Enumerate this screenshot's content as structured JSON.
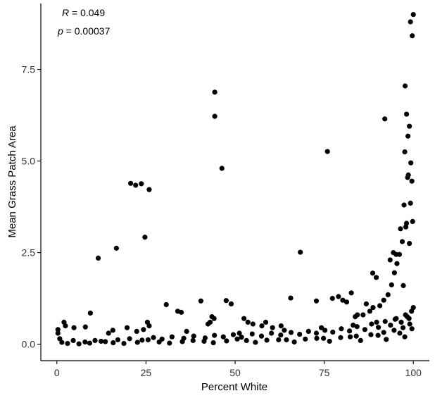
{
  "chart_data": {
    "type": "scatter",
    "xlabel": "Percent White",
    "ylabel": "Mean Grass Patch Area",
    "xlim": [
      -4.5,
      104.5
    ],
    "ylim": [
      -0.45,
      9.3
    ],
    "x_ticks": [
      0,
      25,
      50,
      75,
      100
    ],
    "x_tick_labels": [
      "0",
      "25",
      "50",
      "75",
      "100"
    ],
    "y_ticks": [
      0.0,
      2.5,
      5.0,
      7.5
    ],
    "y_tick_labels": [
      "0.0",
      "2.5",
      "5.0",
      "7.5"
    ],
    "grid": false,
    "legend": "none",
    "point_color": "#000000",
    "annotations": {
      "r_symbol": "R",
      "r_value": " = 0.049",
      "p_symbol": "p",
      "p_value": " = 0.00037"
    },
    "series": [
      {
        "x": [
          0.3,
          0.3,
          2.4,
          2.0,
          4.8,
          8.0,
          9.4,
          11.6,
          16.7,
          20.7,
          22.1,
          23.7,
          24.7,
          25.9,
          14.5,
          15.7,
          19.7,
          22.4,
          25.4,
          25.9,
          24.3,
          30.7,
          33.9,
          34.9,
          40.4,
          44.3,
          44.3,
          46.3,
          47.5,
          48.9,
          43.5,
          43.0,
          42.4,
          44.1,
          52.5,
          53.6,
          55.0,
          57.5,
          58.6,
          60.5,
          62.9,
          65.6,
          68.3,
          72.8,
          75.9,
          77.3,
          79.0,
          80.2,
          81.3,
          82.6,
          84.3,
          86.8,
          88.6,
          89.6,
          92.0,
          93.5,
          94.4,
          95.2,
          96.4,
          97.4,
          97.7,
          98.1,
          98.5,
          98.9,
          99.2,
          99.7,
          100.0,
          99.3,
          98.6,
          97.9,
          96.9,
          96.1,
          95.4,
          94.7,
          93.9,
          92.9,
          91.7,
          90.6,
          88.7,
          87.8,
          85.9,
          83.7,
          97.6,
          98.4,
          99.2,
          99.8,
          98.9,
          97.2,
          99.6,
          98.1,
          1.4,
          4.6,
          7.9,
          10.7,
          13.6,
          17.1,
          20.4,
          23.9,
          27.1,
          29.5,
          32.3,
          35.6,
          38.4,
          41.6,
          44.2,
          46.7,
          49.5,
          51.8,
          54.8,
          57.4,
          60.2,
          62.8,
          65.7,
          68.1,
          70.6,
          72.8,
          75.2,
          77.4,
          79.8,
          82.1,
          84.2,
          86.4,
          88.3,
          90.2,
          92.1,
          93.6,
          95.2,
          96.6,
          97.8,
          98.8,
          99.5,
          100.0,
          3.0,
          9.2,
          15.8,
          22.6,
          28.7,
          35.2,
          41.3,
          47.6,
          53.2,
          58.9,
          64.4,
          69.7,
          74.8,
          79.6,
          84.0,
          88.1,
          91.7,
          94.6,
          97.1,
          99.0,
          6.2,
          18.8,
          31.6,
          43.9,
          55.7,
          66.6,
          76.5,
          85.2,
          92.4,
          97.6,
          0.8,
          12.4,
          25.6,
          38.2,
          50.6,
          62.2,
          72.9,
          82.3,
          90.1,
          96.2,
          99.6,
          36.4,
          51.2,
          63.8,
          74.2,
          83.1,
          89.7,
          94.9,
          98.3
        ],
        "y": [
          0.4,
          0.3,
          0.5,
          0.6,
          0.45,
          0.47,
          0.85,
          2.35,
          2.62,
          4.39,
          4.34,
          4.38,
          2.92,
          4.22,
          0.3,
          0.38,
          0.45,
          0.35,
          0.6,
          0.5,
          0.4,
          1.08,
          0.9,
          0.87,
          1.18,
          6.88,
          6.22,
          4.8,
          1.19,
          1.1,
          0.75,
          0.6,
          0.55,
          0.7,
          0.7,
          0.6,
          0.55,
          0.5,
          0.6,
          0.45,
          0.5,
          1.26,
          2.51,
          1.18,
          5.26,
          1.25,
          1.3,
          1.2,
          1.15,
          1.4,
          0.8,
          1.1,
          1.94,
          1.82,
          6.15,
          2.3,
          2.5,
          2.45,
          3.15,
          3.8,
          7.05,
          6.28,
          5.68,
          5.95,
          8.8,
          8.42,
          9.0,
          4.95,
          4.62,
          3.2,
          2.8,
          2.45,
          2.2,
          1.95,
          1.62,
          1.35,
          1.2,
          1.05,
          1.0,
          0.9,
          0.8,
          0.75,
          5.25,
          4.55,
          3.85,
          3.35,
          2.75,
          1.6,
          4.45,
          3.3,
          0.05,
          0.1,
          0.06,
          0.1,
          0.07,
          0.12,
          0.15,
          0.11,
          0.18,
          0.14,
          0.2,
          0.16,
          0.22,
          0.17,
          0.24,
          0.2,
          0.26,
          0.19,
          0.28,
          0.22,
          0.3,
          0.25,
          0.32,
          0.27,
          0.35,
          0.3,
          0.38,
          0.33,
          0.42,
          0.36,
          0.48,
          0.4,
          0.55,
          0.46,
          0.62,
          0.52,
          0.7,
          0.6,
          0.8,
          0.7,
          0.9,
          1.0,
          0.02,
          0.03,
          0.04,
          0.05,
          0.06,
          0.07,
          0.08,
          0.09,
          0.1,
          0.11,
          0.12,
          0.14,
          0.16,
          0.18,
          0.22,
          0.26,
          0.32,
          0.38,
          0.45,
          0.55,
          0.01,
          0.02,
          0.03,
          0.04,
          0.05,
          0.06,
          0.08,
          0.1,
          0.13,
          0.2,
          0.15,
          0.08,
          0.12,
          0.1,
          0.14,
          0.12,
          0.16,
          0.2,
          0.24,
          0.3,
          0.42,
          0.35,
          0.3,
          0.38,
          0.45,
          0.52,
          0.6,
          0.68,
          0.75
        ]
      }
    ]
  }
}
